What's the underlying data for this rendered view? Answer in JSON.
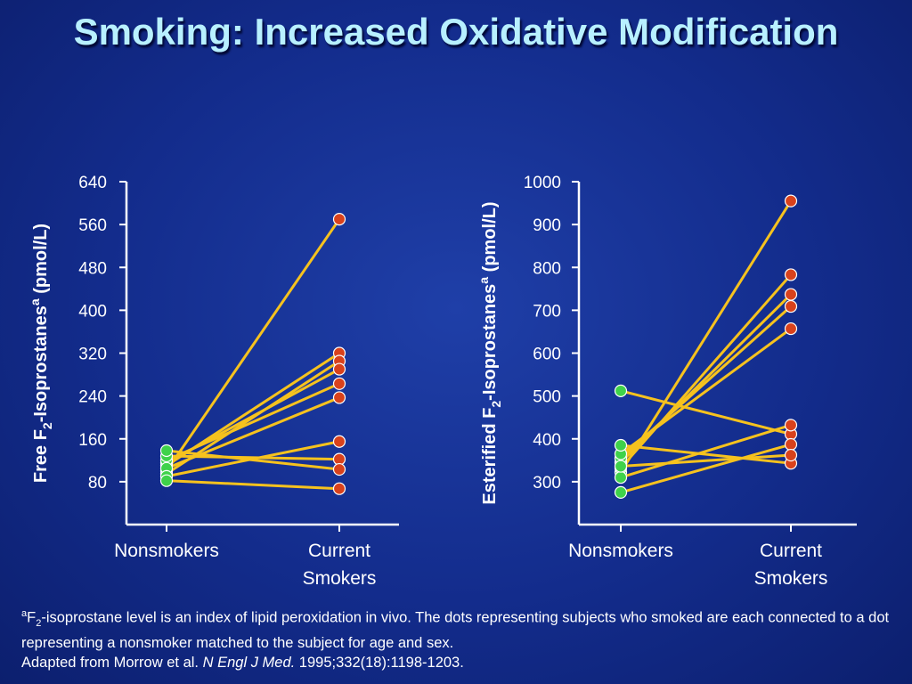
{
  "title": "Smoking: Increased Oxidative Modification",
  "chart_data": [
    {
      "type": "line",
      "ylabel": "Free F2-Isoprostanes(a) (pmol/L)",
      "ylabel_parts": {
        "pre": "Free F",
        "sub": "2",
        "mid": "-Isoprostanes",
        "sup": "a",
        "post": " (pmol/L)"
      },
      "categories": [
        "Nonsmokers",
        "Current Smokers"
      ],
      "category_lines": [
        [
          "Nonsmokers"
        ],
        [
          "Current",
          "Smokers"
        ]
      ],
      "ylim": [
        0,
        640
      ],
      "yticks": [
        "80",
        "160",
        "240",
        "320",
        "400",
        "480",
        "560",
        "640"
      ],
      "pairs": [
        [
          100,
          570
        ],
        [
          110,
          320
        ],
        [
          95,
          305
        ],
        [
          115,
          290
        ],
        [
          120,
          263
        ],
        [
          105,
          237
        ],
        [
          90,
          155
        ],
        [
          128,
          122
        ],
        [
          138,
          103
        ],
        [
          82,
          67
        ]
      ]
    },
    {
      "type": "line",
      "ylabel": "Esterified F2-Isoprostanes(a) (pmol/L)",
      "ylabel_parts": {
        "pre": "Esterified F",
        "sub": "2",
        "mid": "-Isoprostanes",
        "sup": "a",
        "post": " (pmol/L)"
      },
      "categories": [
        "Nonsmokers",
        "Current Smokers"
      ],
      "category_lines": [
        [
          "Nonsmokers"
        ],
        [
          "Current",
          "Smokers"
        ]
      ],
      "ylim": [
        200,
        1000
      ],
      "yticks": [
        "300",
        "400",
        "500",
        "600",
        "700",
        "800",
        "900",
        "1000"
      ],
      "pairs": [
        [
          322,
          955
        ],
        [
          332,
          783
        ],
        [
          345,
          737
        ],
        [
          355,
          709
        ],
        [
          365,
          657
        ],
        [
          512,
          411
        ],
        [
          385,
          343
        ],
        [
          310,
          432
        ],
        [
          275,
          387
        ],
        [
          336,
          362
        ]
      ]
    }
  ],
  "colors": {
    "line": "#f6c21e",
    "nonsmoker_dot": "#3fd24a",
    "smoker_dot": "#d9421c",
    "axis": "#ffffff"
  },
  "footnote": {
    "sup": "a",
    "f": "F",
    "sub": "2",
    "line1_rest": "-isoprostane level is an index of lipid peroxidation in vivo. The dots representing subjects who smoked are each connected to a dot representing a nonsmoker matched to the subject for age and sex.",
    "ref_pre": "Adapted from Morrow et al. ",
    "ref_journal": "N Engl J Med.",
    "ref_post": " 1995;332(18):1198-1203."
  }
}
